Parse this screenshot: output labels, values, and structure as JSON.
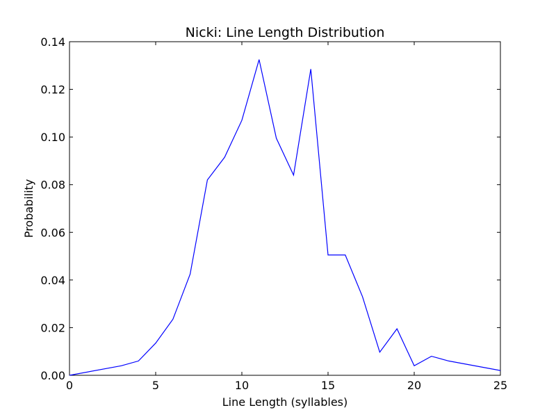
{
  "chart_data": {
    "type": "line",
    "title": "Nicki: Line Length Distribution",
    "xlabel": "Line Length (syllables)",
    "ylabel": "Probability",
    "xlim": [
      0,
      25
    ],
    "ylim": [
      0,
      0.14
    ],
    "xticks": [
      "0",
      "5",
      "10",
      "15",
      "20",
      "25"
    ],
    "yticks": [
      "0.00",
      "0.02",
      "0.04",
      "0.06",
      "0.08",
      "0.10",
      "0.12",
      "0.14"
    ],
    "grid": false,
    "line_color": "#0000ff",
    "series": [
      {
        "x": [
          0,
          3,
          4,
          5,
          6,
          7,
          8,
          9,
          10,
          11,
          12,
          13,
          14,
          15,
          16,
          17,
          18,
          19,
          20,
          21,
          22,
          25
        ],
        "values": [
          0.0,
          0.004,
          0.006,
          0.0135,
          0.0235,
          0.0425,
          0.082,
          0.0915,
          0.107,
          0.1325,
          0.0995,
          0.084,
          0.1285,
          0.0505,
          0.0505,
          0.033,
          0.0097,
          0.0195,
          0.004,
          0.008,
          0.006,
          0.002
        ]
      }
    ]
  }
}
